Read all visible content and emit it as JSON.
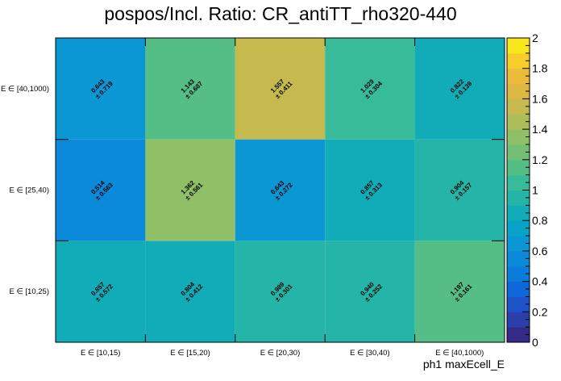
{
  "chart_data": {
    "type": "heatmap",
    "title": "pospos/Incl. Ratio: CR_antiTT_rho320-440",
    "xlabel": "ph1 maxEcell_E",
    "ylabel": "",
    "x_categories": [
      "E ∈ [10,15)",
      "E ∈ [15,20)",
      "E ∈ [20,30)",
      "E ∈ [30,40)",
      "E ∈ [40,1000)"
    ],
    "y_categories": [
      "E ∈ [10,25)",
      "E ∈ [25,40)",
      "E ∈ [40,1000)"
    ],
    "values": [
      [
        0.857,
        0.804,
        0.989,
        0.94,
        1.197
      ],
      [
        0.514,
        1.362,
        0.643,
        0.857,
        0.904
      ],
      [
        0.643,
        1.143,
        1.557,
        1.029,
        0.822
      ]
    ],
    "errors": [
      [
        0.572,
        0.412,
        0.301,
        0.252,
        0.161
      ],
      [
        0.563,
        0.561,
        0.272,
        0.313,
        0.157
      ],
      [
        0.719,
        0.687,
        0.411,
        0.304,
        0.139
      ]
    ],
    "value_labels": [
      [
        "0.857",
        "0.804",
        "0.989",
        "0.940",
        "1.197"
      ],
      [
        "0.514",
        "1.362",
        "0.643",
        "0.857",
        "0.904"
      ],
      [
        "0.643",
        "1.143",
        "1.557",
        "1.029",
        "0.822"
      ]
    ],
    "error_labels": [
      [
        "± 0.572",
        "± 0.412",
        "± 0.301",
        "± 0.252",
        "± 0.161"
      ],
      [
        "± 0.563",
        "± 0.561",
        "± 0.272",
        "± 0.313",
        "± 0.157"
      ],
      [
        "± 0.719",
        "± 0.687",
        "± 0.411",
        "± 0.304",
        "± 0.139"
      ]
    ],
    "zlim": [
      0,
      2
    ],
    "colorbar_ticks": [
      "0",
      "0.2",
      "0.4",
      "0.6",
      "0.8",
      "1",
      "1.2",
      "1.4",
      "1.6",
      "1.8",
      "2"
    ],
    "palette": "parula",
    "grid": false,
    "legend": "colorbar-right"
  }
}
